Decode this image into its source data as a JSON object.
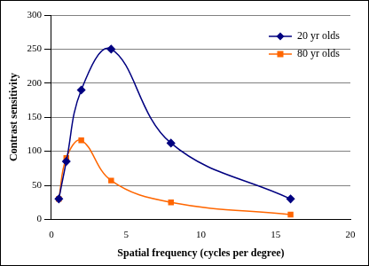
{
  "chart_data": {
    "type": "line",
    "x_label": "Spatial frequency (cycles per degree)",
    "y_label": "Contrast sensitivity",
    "x": [
      0.5,
      1,
      2,
      4,
      8,
      16
    ],
    "series": [
      {
        "name": "20 yr olds",
        "color": "#000080",
        "marker": "diamond",
        "line_style": "solid",
        "values": [
          30,
          85,
          190,
          250,
          112,
          30
        ]
      },
      {
        "name": "80 yr olds",
        "color": "#ff6600",
        "marker": "square",
        "line_style": "solid",
        "values": [
          30,
          90,
          116,
          57,
          25,
          7
        ]
      }
    ],
    "xlim": [
      0,
      20
    ],
    "xticks": [
      0,
      5,
      10,
      15,
      20
    ],
    "ylim": [
      0,
      300
    ],
    "yticks": [
      0,
      50,
      100,
      150,
      200,
      250,
      300
    ],
    "grid": "y",
    "legend": "upper right"
  }
}
